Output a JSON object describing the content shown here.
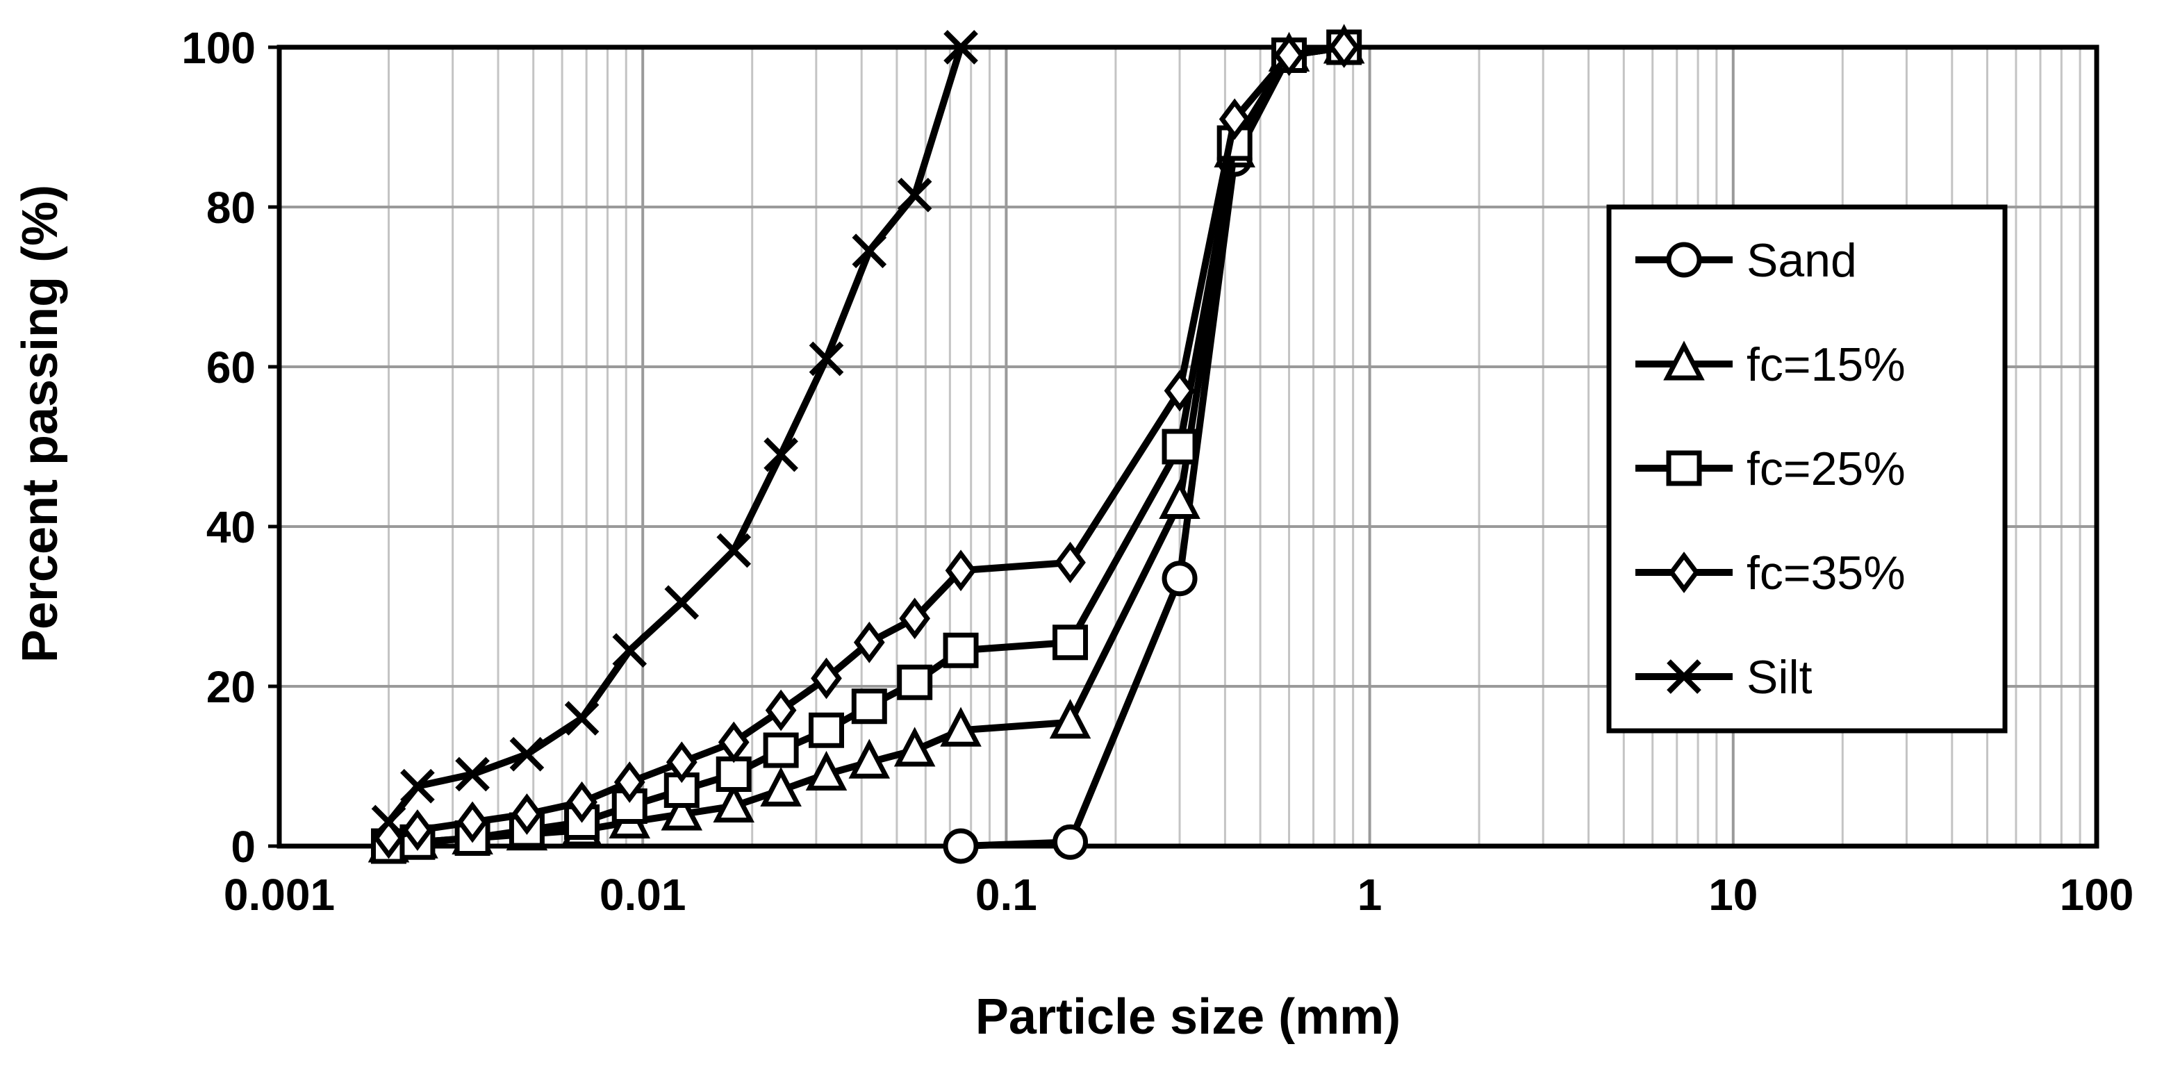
{
  "chart_data": {
    "type": "line",
    "x_scale": "log",
    "xlabel": "Particle size (mm)",
    "ylabel": "Percent passing (%)",
    "xlim": [
      0.001,
      100
    ],
    "ylim": [
      0,
      100
    ],
    "x_ticks": [
      "0.001",
      "0.01",
      "0.1",
      "1",
      "10",
      "100"
    ],
    "y_ticks": [
      "0",
      "20",
      "40",
      "60",
      "80",
      "100"
    ],
    "grid": true,
    "legend_position": "right",
    "series": [
      {
        "name": "Sand",
        "marker": "circle",
        "x": [
          0.075,
          0.15,
          0.3,
          0.425,
          0.6,
          0.85
        ],
        "y": [
          0,
          0.5,
          33.5,
          86,
          99,
          100
        ]
      },
      {
        "name": "fc=15%",
        "marker": "triangle",
        "x": [
          0.002,
          0.0024,
          0.0034,
          0.0048,
          0.0068,
          0.0092,
          0.0128,
          0.0178,
          0.024,
          0.032,
          0.042,
          0.056,
          0.075,
          0.15,
          0.3,
          0.425,
          0.6,
          0.85
        ],
        "y": [
          0,
          0.5,
          1,
          1.5,
          2,
          3,
          4,
          5,
          7,
          9,
          10.5,
          12,
          14.5,
          15.5,
          43,
          87,
          99,
          100
        ]
      },
      {
        "name": "fc=25%",
        "marker": "square",
        "x": [
          0.002,
          0.0024,
          0.0034,
          0.0048,
          0.0068,
          0.0092,
          0.0128,
          0.0178,
          0.024,
          0.032,
          0.042,
          0.056,
          0.075,
          0.15,
          0.3,
          0.425,
          0.6,
          0.85
        ],
        "y": [
          0,
          0.5,
          1,
          2,
          3,
          5,
          7,
          9,
          12,
          14.5,
          17.5,
          20.5,
          24.5,
          25.5,
          50,
          88,
          99,
          100
        ]
      },
      {
        "name": "fc=35%",
        "marker": "diamond",
        "x": [
          0.002,
          0.0024,
          0.0034,
          0.0048,
          0.0068,
          0.0092,
          0.0128,
          0.0178,
          0.024,
          0.032,
          0.042,
          0.056,
          0.075,
          0.15,
          0.3,
          0.425,
          0.6,
          0.85
        ],
        "y": [
          1,
          2,
          3,
          4,
          5.5,
          8,
          10.5,
          13,
          17,
          21,
          25.5,
          28.5,
          34.5,
          35.5,
          57,
          91,
          99,
          100
        ]
      },
      {
        "name": "Silt",
        "marker": "x",
        "x": [
          0.002,
          0.0024,
          0.0034,
          0.0048,
          0.0068,
          0.0092,
          0.0128,
          0.0178,
          0.024,
          0.032,
          0.042,
          0.056,
          0.075
        ],
        "y": [
          3,
          7.5,
          9,
          11.5,
          16,
          24.5,
          30.5,
          37,
          49,
          61,
          74.5,
          81.5,
          100
        ]
      }
    ]
  }
}
